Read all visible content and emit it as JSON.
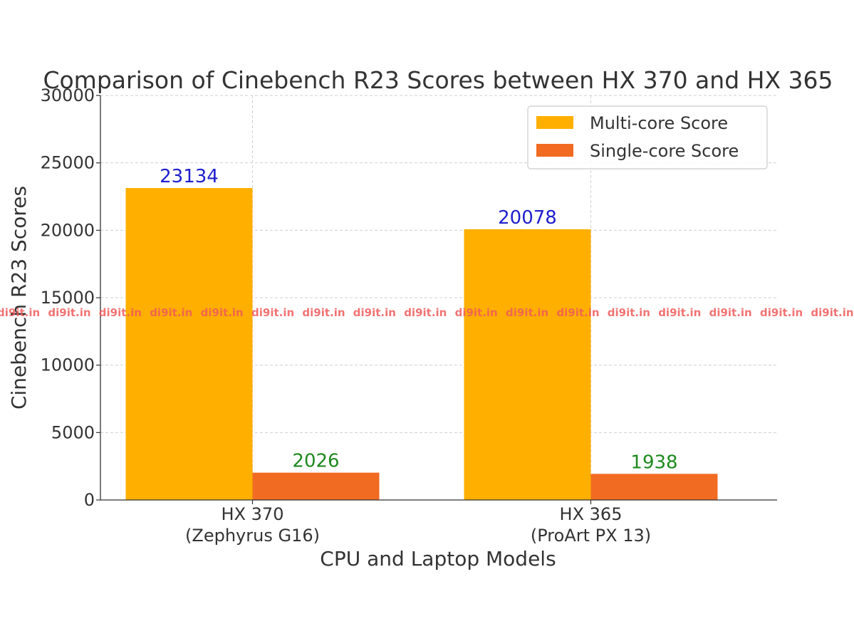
{
  "chart_data": {
    "type": "bar",
    "title": "Comparison of Cinebench R23 Scores between HX 370 and HX 365",
    "xlabel": "CPU and Laptop Models",
    "ylabel": "Cinebench R23 Scores",
    "categories": [
      [
        "HX 370",
        "(Zephyrus G16)"
      ],
      [
        "HX 365",
        "(ProArt PX 13)"
      ]
    ],
    "series": [
      {
        "name": "Multi-core Score",
        "color": "#FFAF00",
        "label_color": "#1F1FCC",
        "values": [
          23134,
          20078
        ]
      },
      {
        "name": "Single-core Score",
        "color": "#F26B22",
        "label_color": "#1E8A1E",
        "values": [
          2026,
          1938
        ]
      }
    ],
    "ylim": [
      0,
      30000
    ],
    "yticks": [
      0,
      5000,
      10000,
      15000,
      20000,
      25000,
      30000
    ],
    "grid": true,
    "legend_position": "top-right"
  },
  "watermark": {
    "text": "di9it.in",
    "color": "#F05A5A"
  }
}
